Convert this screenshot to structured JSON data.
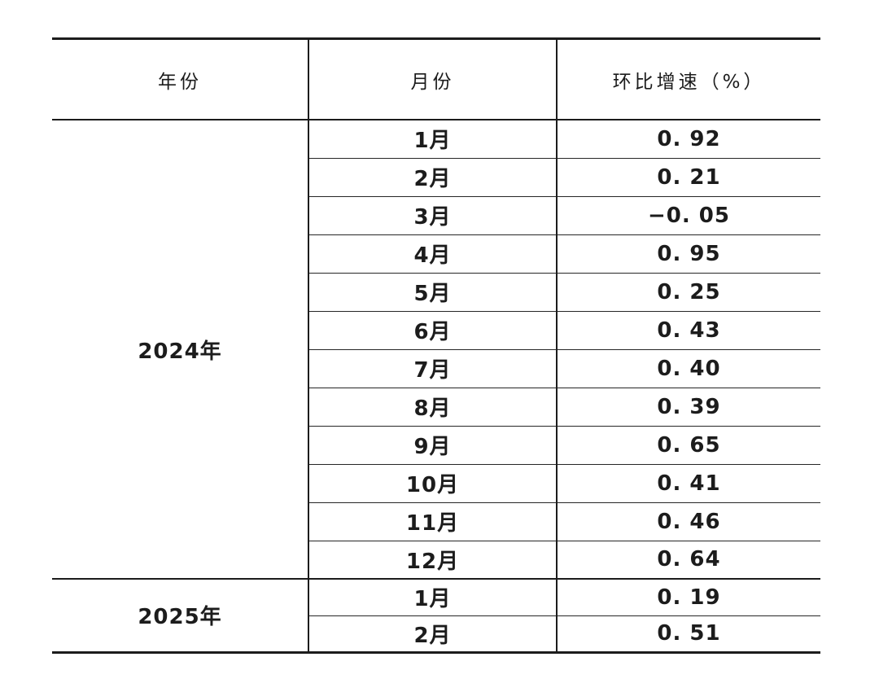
{
  "colors": {
    "background": "#ffffff",
    "text": "#1c1c1c",
    "border": "#1c1c1c"
  },
  "table": {
    "headers": {
      "year": "年份",
      "month": "月份",
      "growth": "环比增速（%）"
    },
    "groups": [
      {
        "year": "2024年"
      },
      {
        "year": "2025年"
      }
    ],
    "rows": [
      {
        "month": "1月",
        "value": "0. 92"
      },
      {
        "month": "2月",
        "value": "0. 21"
      },
      {
        "month": "3月",
        "value": "−0. 05"
      },
      {
        "month": "4月",
        "value": "0. 95"
      },
      {
        "month": "5月",
        "value": "0. 25"
      },
      {
        "month": "6月",
        "value": "0. 43"
      },
      {
        "month": "7月",
        "value": "0. 40"
      },
      {
        "month": "8月",
        "value": "0. 39"
      },
      {
        "month": "9月",
        "value": "0. 65"
      },
      {
        "month": "10月",
        "value": "0. 41"
      },
      {
        "month": "11月",
        "value": "0. 46"
      },
      {
        "month": "12月",
        "value": "0. 64"
      },
      {
        "month": "1月",
        "value": "0. 19"
      },
      {
        "month": "2月",
        "value": "0. 51"
      }
    ]
  },
  "chart_data": {
    "type": "table",
    "columns": [
      "年份",
      "月份",
      "环比增速（%）"
    ],
    "rows": [
      [
        "2024年",
        "1月",
        0.92
      ],
      [
        "2024年",
        "2月",
        0.21
      ],
      [
        "2024年",
        "3月",
        -0.05
      ],
      [
        "2024年",
        "4月",
        0.95
      ],
      [
        "2024年",
        "5月",
        0.25
      ],
      [
        "2024年",
        "6月",
        0.43
      ],
      [
        "2024年",
        "7月",
        0.4
      ],
      [
        "2024年",
        "8月",
        0.39
      ],
      [
        "2024年",
        "9月",
        0.65
      ],
      [
        "2024年",
        "10月",
        0.41
      ],
      [
        "2024年",
        "11月",
        0.46
      ],
      [
        "2024年",
        "12月",
        0.64
      ],
      [
        "2025年",
        "1月",
        0.19
      ],
      [
        "2025年",
        "2月",
        0.51
      ]
    ],
    "notes": "Month-over-month growth rate (%) table; 2024年 cell spans 12 month rows, 2025年 cell spans 2 month rows"
  }
}
